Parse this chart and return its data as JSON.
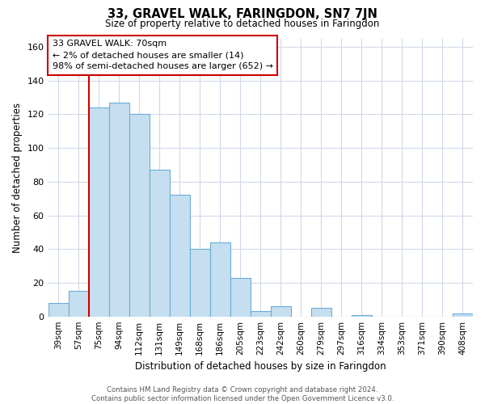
{
  "title": "33, GRAVEL WALK, FARINGDON, SN7 7JN",
  "subtitle": "Size of property relative to detached houses in Faringdon",
  "xlabel": "Distribution of detached houses by size in Faringdon",
  "ylabel": "Number of detached properties",
  "bar_labels": [
    "39sqm",
    "57sqm",
    "75sqm",
    "94sqm",
    "112sqm",
    "131sqm",
    "149sqm",
    "168sqm",
    "186sqm",
    "205sqm",
    "223sqm",
    "242sqm",
    "260sqm",
    "279sqm",
    "297sqm",
    "316sqm",
    "334sqm",
    "353sqm",
    "371sqm",
    "390sqm",
    "408sqm"
  ],
  "bar_heights": [
    8,
    15,
    124,
    127,
    120,
    87,
    72,
    40,
    44,
    23,
    3,
    6,
    0,
    5,
    0,
    1,
    0,
    0,
    0,
    0,
    2
  ],
  "bar_color": "#c5dff0",
  "bar_edge_color": "#6badd6",
  "marker_color": "#cc0000",
  "ylim": [
    0,
    165
  ],
  "yticks": [
    0,
    20,
    40,
    60,
    80,
    100,
    120,
    140,
    160
  ],
  "annotation_title": "33 GRAVEL WALK: 70sqm",
  "annotation_line1": "← 2% of detached houses are smaller (14)",
  "annotation_line2": "98% of semi-detached houses are larger (652) →",
  "footer_line1": "Contains HM Land Registry data © Crown copyright and database right 2024.",
  "footer_line2": "Contains public sector information licensed under the Open Government Licence v3.0.",
  "background_color": "#ffffff",
  "grid_color": "#d0d8e8"
}
